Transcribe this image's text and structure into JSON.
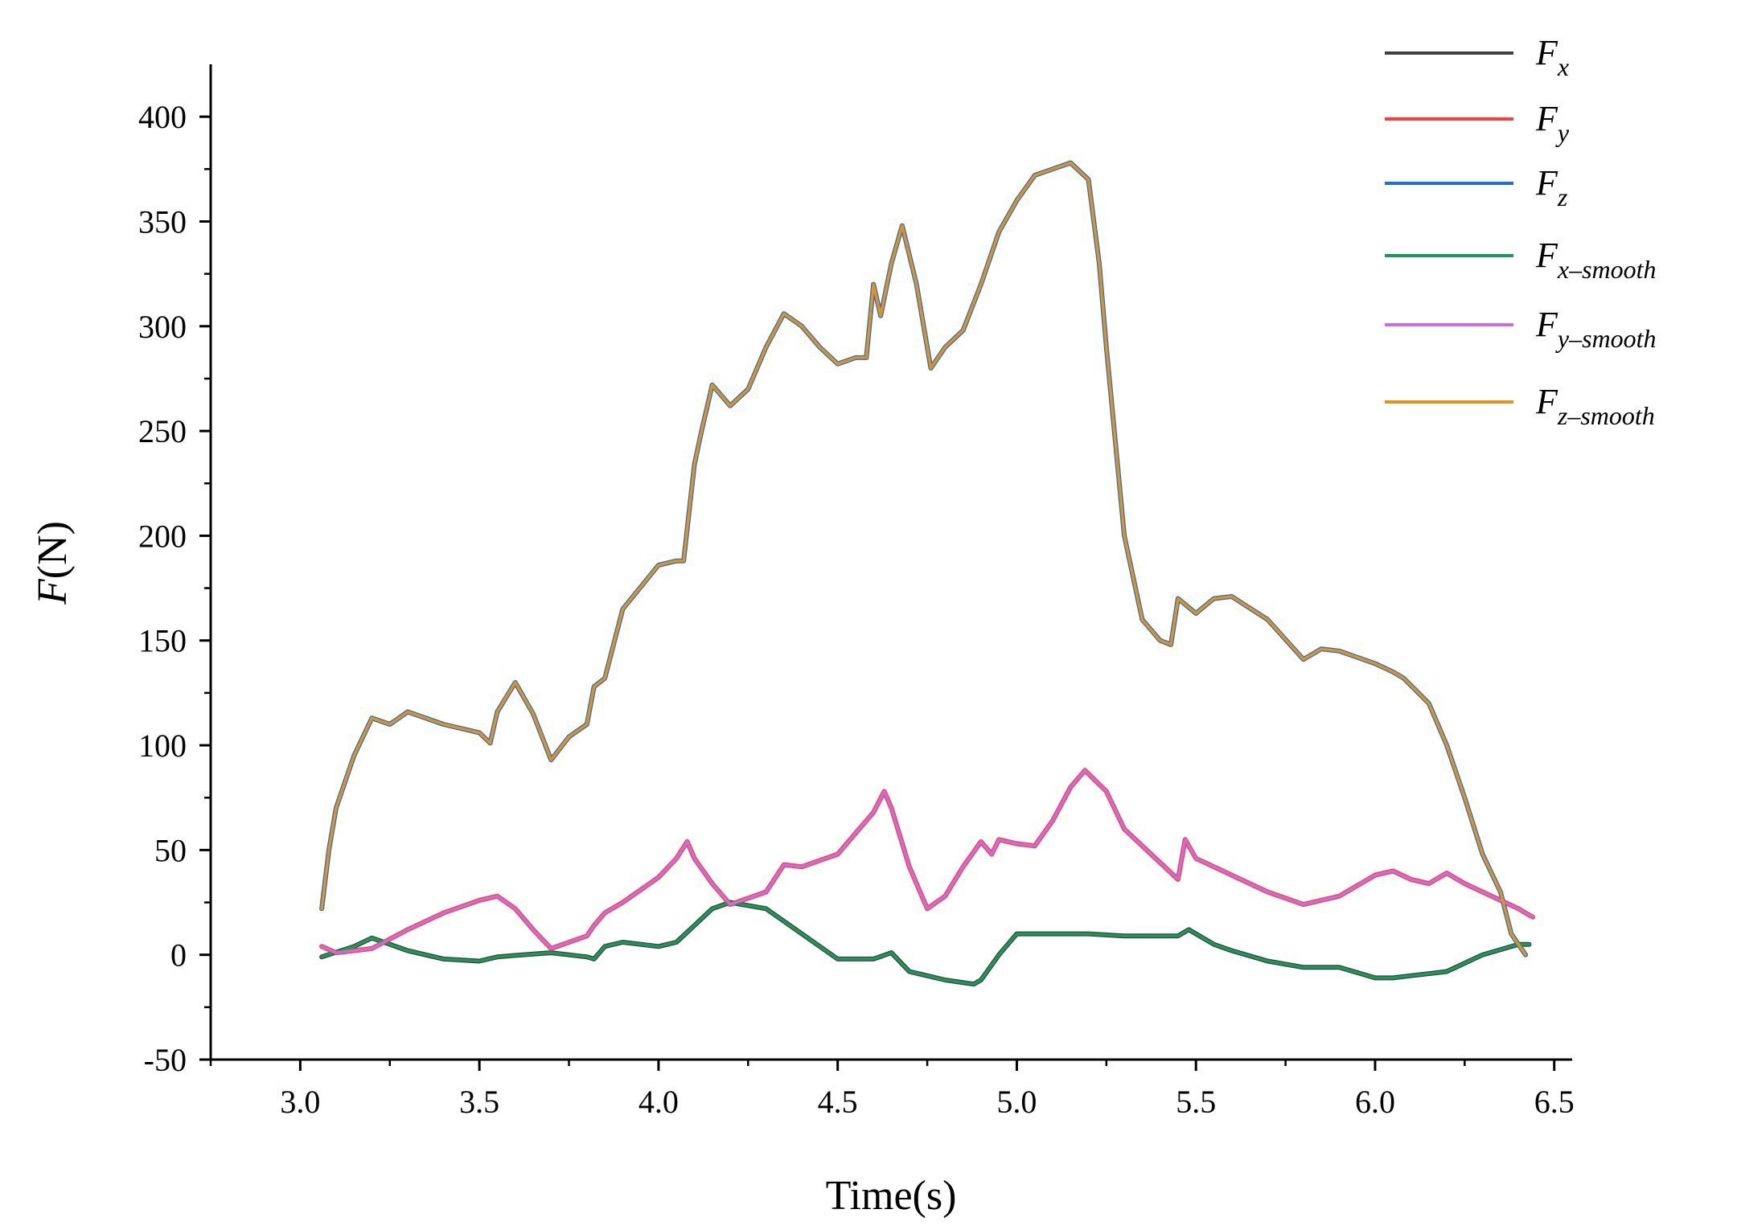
{
  "chart_data": {
    "type": "line",
    "title": "",
    "xlabel": "Time(s)",
    "ylabel_italic": "F",
    "ylabel_rest": "(N)",
    "xlim": [
      2.75,
      6.55
    ],
    "ylim": [
      -50,
      425
    ],
    "xticks": [
      3.0,
      3.5,
      4.0,
      4.5,
      5.0,
      5.5,
      6.0,
      6.5
    ],
    "xtick_labels": [
      "3.0",
      "3.5",
      "4.0",
      "4.5",
      "5.0",
      "5.5",
      "6.0",
      "6.5"
    ],
    "yticks": [
      -50,
      0,
      50,
      100,
      150,
      200,
      250,
      300,
      350,
      400
    ],
    "ytick_labels": [
      "-50",
      "0",
      "50",
      "100",
      "150",
      "200",
      "250",
      "300",
      "350",
      "400"
    ],
    "grid": false,
    "legend_position": "top-right",
    "series": [
      {
        "name": "Fx",
        "label_main": "F",
        "label_sub": "x",
        "color": "#404040",
        "x": [
          3.06,
          3.15,
          3.2,
          3.3,
          3.4,
          3.5,
          3.55,
          3.62,
          3.7,
          3.8,
          3.82,
          3.85,
          3.9,
          4.0,
          4.05,
          4.1,
          4.15,
          4.2,
          4.3,
          4.4,
          4.5,
          4.6,
          4.65,
          4.7,
          4.8,
          4.88,
          4.9,
          4.95,
          5.0,
          5.1,
          5.2,
          5.3,
          5.4,
          5.45,
          5.48,
          5.55,
          5.6,
          5.7,
          5.8,
          5.9,
          6.0,
          6.05,
          6.1,
          6.2,
          6.3,
          6.4,
          6.43
        ],
        "y": [
          -1,
          4,
          8,
          2,
          -2,
          -3,
          -1,
          0,
          1,
          -1,
          -2,
          4,
          6,
          4,
          6,
          14,
          22,
          25,
          22,
          10,
          -2,
          -2,
          1,
          -8,
          -12,
          -14,
          -12,
          0,
          10,
          10,
          10,
          9,
          9,
          9,
          12,
          5,
          2,
          -3,
          -6,
          -6,
          -11,
          -11,
          -10,
          -8,
          0,
          5,
          5
        ]
      },
      {
        "name": "Fy",
        "label_main": "F",
        "label_sub": "y",
        "color": "#ff3b3b",
        "x": [
          3.06,
          3.1,
          3.2,
          3.3,
          3.4,
          3.5,
          3.55,
          3.6,
          3.65,
          3.7,
          3.8,
          3.82,
          3.85,
          3.9,
          4.0,
          4.05,
          4.08,
          4.1,
          4.15,
          4.2,
          4.25,
          4.3,
          4.35,
          4.4,
          4.5,
          4.55,
          4.6,
          4.63,
          4.65,
          4.7,
          4.75,
          4.8,
          4.85,
          4.9,
          4.93,
          4.95,
          5.0,
          5.05,
          5.1,
          5.15,
          5.19,
          5.25,
          5.3,
          5.4,
          5.45,
          5.47,
          5.5,
          5.6,
          5.7,
          5.8,
          5.9,
          6.0,
          6.05,
          6.1,
          6.15,
          6.2,
          6.25,
          6.3,
          6.35,
          6.4,
          6.44
        ],
        "y": [
          4,
          1,
          3,
          12,
          20,
          26,
          28,
          22,
          12,
          3,
          9,
          14,
          20,
          25,
          37,
          46,
          54,
          46,
          34,
          24,
          27,
          30,
          43,
          42,
          48,
          58,
          68,
          78,
          70,
          42,
          22,
          28,
          42,
          54,
          48,
          55,
          53,
          52,
          64,
          80,
          88,
          78,
          60,
          44,
          36,
          55,
          46,
          38,
          30,
          24,
          28,
          38,
          40,
          36,
          34,
          39,
          34,
          30,
          26,
          22,
          18
        ]
      },
      {
        "name": "Fz",
        "label_main": "F",
        "label_sub": "z",
        "color": "#1f6fd6",
        "x": [
          3.06,
          3.08,
          3.1,
          3.15,
          3.2,
          3.25,
          3.3,
          3.4,
          3.5,
          3.53,
          3.55,
          3.6,
          3.65,
          3.7,
          3.75,
          3.8,
          3.82,
          3.85,
          3.9,
          4.0,
          4.05,
          4.07,
          4.1,
          4.12,
          4.15,
          4.2,
          4.25,
          4.3,
          4.35,
          4.4,
          4.45,
          4.5,
          4.55,
          4.58,
          4.6,
          4.62,
          4.65,
          4.68,
          4.72,
          4.76,
          4.8,
          4.85,
          4.9,
          4.95,
          5.0,
          5.05,
          5.1,
          5.15,
          5.2,
          5.23,
          5.25,
          5.3,
          5.35,
          5.4,
          5.43,
          5.45,
          5.5,
          5.55,
          5.6,
          5.7,
          5.8,
          5.85,
          5.9,
          6.0,
          6.05,
          6.08,
          6.15,
          6.2,
          6.25,
          6.3,
          6.35,
          6.38,
          6.42
        ],
        "y": [
          22,
          50,
          70,
          95,
          113,
          110,
          116,
          110,
          106,
          101,
          116,
          130,
          115,
          93,
          104,
          110,
          128,
          132,
          165,
          186,
          188,
          188,
          234,
          250,
          272,
          262,
          270,
          290,
          306,
          300,
          290,
          282,
          285,
          285,
          320,
          305,
          330,
          348,
          320,
          280,
          290,
          298,
          320,
          345,
          360,
          372,
          375,
          378,
          370,
          330,
          290,
          200,
          160,
          150,
          148,
          170,
          163,
          170,
          171,
          160,
          141,
          146,
          145,
          139,
          135,
          132,
          120,
          100,
          75,
          48,
          30,
          10,
          0
        ]
      },
      {
        "name": "Fx-smooth",
        "label_main": "F",
        "label_sub": "x–smooth",
        "color": "#1a9a5a",
        "x": [
          3.06,
          3.15,
          3.2,
          3.3,
          3.4,
          3.5,
          3.55,
          3.62,
          3.7,
          3.8,
          3.82,
          3.85,
          3.9,
          4.0,
          4.05,
          4.1,
          4.15,
          4.2,
          4.3,
          4.4,
          4.5,
          4.6,
          4.65,
          4.7,
          4.8,
          4.88,
          4.9,
          4.95,
          5.0,
          5.1,
          5.2,
          5.3,
          5.4,
          5.45,
          5.48,
          5.55,
          5.6,
          5.7,
          5.8,
          5.9,
          6.0,
          6.05,
          6.1,
          6.2,
          6.3,
          6.4,
          6.43
        ],
        "y": [
          -1,
          4,
          8,
          2,
          -2,
          -3,
          -1,
          0,
          1,
          -1,
          -2,
          4,
          6,
          4,
          6,
          14,
          22,
          25,
          22,
          10,
          -2,
          -2,
          1,
          -8,
          -12,
          -14,
          -12,
          0,
          10,
          10,
          10,
          9,
          9,
          9,
          12,
          5,
          2,
          -3,
          -6,
          -6,
          -11,
          -11,
          -10,
          -8,
          0,
          5,
          5
        ]
      },
      {
        "name": "Fy-smooth",
        "label_main": "F",
        "label_sub": "y–smooth",
        "color": "#c86edc",
        "x": [
          3.06,
          3.1,
          3.2,
          3.3,
          3.4,
          3.5,
          3.55,
          3.6,
          3.65,
          3.7,
          3.8,
          3.82,
          3.85,
          3.9,
          4.0,
          4.05,
          4.08,
          4.1,
          4.15,
          4.2,
          4.25,
          4.3,
          4.35,
          4.4,
          4.5,
          4.55,
          4.6,
          4.63,
          4.65,
          4.7,
          4.75,
          4.8,
          4.85,
          4.9,
          4.93,
          4.95,
          5.0,
          5.05,
          5.1,
          5.15,
          5.19,
          5.25,
          5.3,
          5.4,
          5.45,
          5.47,
          5.5,
          5.6,
          5.7,
          5.8,
          5.9,
          6.0,
          6.05,
          6.1,
          6.15,
          6.2,
          6.25,
          6.3,
          6.35,
          6.4,
          6.44
        ],
        "y": [
          4,
          1,
          3,
          12,
          20,
          26,
          28,
          22,
          12,
          3,
          9,
          14,
          20,
          25,
          37,
          46,
          54,
          46,
          34,
          24,
          27,
          30,
          43,
          42,
          48,
          58,
          68,
          78,
          70,
          42,
          22,
          28,
          42,
          54,
          48,
          55,
          53,
          52,
          64,
          80,
          88,
          78,
          60,
          44,
          36,
          55,
          46,
          38,
          30,
          24,
          28,
          38,
          40,
          36,
          34,
          39,
          34,
          30,
          26,
          22,
          18
        ]
      },
      {
        "name": "Fz-smooth",
        "label_main": "F",
        "label_sub": "z–smooth",
        "color": "#e3921a",
        "x": [
          3.06,
          3.08,
          3.1,
          3.15,
          3.2,
          3.25,
          3.3,
          3.4,
          3.5,
          3.53,
          3.55,
          3.6,
          3.65,
          3.7,
          3.75,
          3.8,
          3.82,
          3.85,
          3.9,
          4.0,
          4.05,
          4.07,
          4.1,
          4.12,
          4.15,
          4.2,
          4.25,
          4.3,
          4.35,
          4.4,
          4.45,
          4.5,
          4.55,
          4.58,
          4.6,
          4.62,
          4.65,
          4.68,
          4.72,
          4.76,
          4.8,
          4.85,
          4.9,
          4.95,
          5.0,
          5.05,
          5.1,
          5.15,
          5.2,
          5.23,
          5.25,
          5.3,
          5.35,
          5.4,
          5.43,
          5.45,
          5.5,
          5.55,
          5.6,
          5.7,
          5.8,
          5.85,
          5.9,
          6.0,
          6.05,
          6.08,
          6.15,
          6.2,
          6.25,
          6.3,
          6.35,
          6.38,
          6.42
        ],
        "y": [
          22,
          50,
          70,
          95,
          113,
          110,
          116,
          110,
          106,
          101,
          116,
          130,
          115,
          93,
          104,
          110,
          128,
          132,
          165,
          186,
          188,
          188,
          234,
          250,
          272,
          262,
          270,
          290,
          306,
          300,
          290,
          282,
          285,
          285,
          320,
          305,
          330,
          348,
          320,
          280,
          290,
          298,
          320,
          345,
          360,
          372,
          375,
          378,
          370,
          330,
          290,
          200,
          160,
          150,
          148,
          170,
          163,
          170,
          171,
          160,
          141,
          146,
          145,
          139,
          135,
          132,
          120,
          100,
          75,
          48,
          30,
          10,
          0
        ]
      }
    ]
  }
}
